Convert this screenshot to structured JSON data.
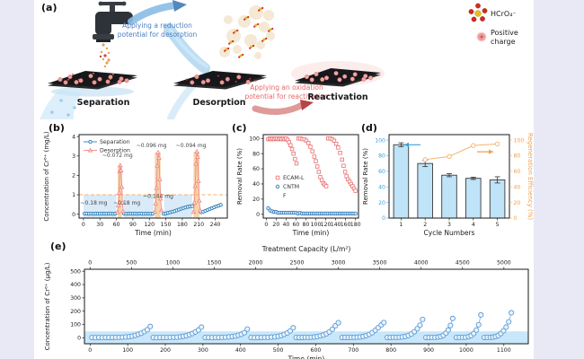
{
  "page": {
    "background": "#e8e9f4",
    "canvas_background": "#ffffff"
  },
  "panel_labels": {
    "a": "(a)",
    "b": "(b)",
    "c": "(c)",
    "d": "(d)",
    "e": "(e)"
  },
  "panel_a": {
    "stage_labels": [
      "Separation",
      "Desorption",
      "Reactivation"
    ],
    "blue_arrow_text_line1": "Applying a reduction",
    "blue_arrow_text_line2": "potential for desorption",
    "red_arrow_text_line1": "Applying an oxidation",
    "red_arrow_text_line2": "potential for reactivation",
    "legend": {
      "molecule_label": "HCrO₄⁻",
      "charge_label_line1": "Positive",
      "charge_label_line2": "charge"
    },
    "colors": {
      "blue_text": "#4a7fc1",
      "red_text": "#e96868",
      "blue_arrow": "#8abde5",
      "red_arrow": "#dc8f8f"
    }
  },
  "chart_data": [
    {
      "id": "b",
      "type": "line",
      "xlabel": "Time (min)",
      "ylabel": "Concentration of Cr⁶⁺ (mg/L)",
      "xlim": [
        -8,
        262
      ],
      "ylim": [
        -0.2,
        4.1
      ],
      "xticks": [
        0,
        30,
        60,
        90,
        120,
        150,
        180,
        210,
        240
      ],
      "yticks": [
        0,
        1,
        2,
        3,
        4
      ],
      "threshold": {
        "y": 1,
        "color": "#f5b26b"
      },
      "shade_color": "#d9eaf8",
      "shaded_regions": [
        {
          "x0": 0,
          "x1": 60
        },
        {
          "x0": 73,
          "x1": 128
        },
        {
          "x0": 147,
          "x1": 198
        }
      ],
      "band_color": "#f6d3a9",
      "peak_bands": [
        {
          "x0": 62.5,
          "x1": 70,
          "top": 2.52
        },
        {
          "x0": 130,
          "x1": 140.5,
          "top": 3.18
        },
        {
          "x0": 200.5,
          "x1": 211,
          "top": 3.22
        }
      ],
      "series": [
        {
          "name": "Separation",
          "color": "#2e7fb8",
          "marker": "circle",
          "marker_fill": "#eaf4fb",
          "segments": [
            {
              "x": [
                2,
                6,
                10,
                14,
                18,
                22,
                26,
                30,
                34,
                38,
                42,
                46,
                50,
                54,
                58
              ],
              "y": [
                0.03,
                0.03,
                0.02,
                0.03,
                0.02,
                0.03,
                0.03,
                0.02,
                0.03,
                0.03,
                0.02,
                0.03,
                0.03,
                0.02,
                0.03
              ]
            },
            {
              "x": [
                74,
                78,
                82,
                86,
                90,
                94,
                98,
                102,
                106,
                110,
                114,
                118,
                122,
                126
              ],
              "y": [
                0.03,
                0.02,
                0.03,
                0.03,
                0.02,
                0.03,
                0.02,
                0.03,
                0.03,
                0.02,
                0.03,
                0.03,
                0.02,
                0.03
              ]
            },
            {
              "x": [
                146,
                150,
                154,
                158,
                162,
                166,
                170,
                174,
                178,
                182,
                186,
                190,
                194,
                198
              ],
              "y": [
                0.02,
                0.04,
                0.07,
                0.1,
                0.13,
                0.16,
                0.2,
                0.24,
                0.28,
                0.32,
                0.35,
                0.38,
                0.4,
                0.42
              ]
            },
            {
              "x": [
                214,
                218,
                222,
                226,
                230,
                234,
                238,
                242,
                246,
                250
              ],
              "y": [
                0.1,
                0.13,
                0.17,
                0.22,
                0.27,
                0.31,
                0.36,
                0.4,
                0.44,
                0.48
              ]
            }
          ]
        },
        {
          "name": "Desorption",
          "color": "#ef8a88",
          "marker": "triangle",
          "marker_fill": "#fdecec",
          "segments": [
            {
              "x": [
                62,
                63.5,
                65,
                66,
                67,
                68.5,
                70,
                71,
                72
              ],
              "y": [
                0.1,
                0.45,
                1.1,
                2.2,
                2.52,
                2.25,
                1.4,
                0.6,
                0.15
              ]
            },
            {
              "x": [
                130,
                131.5,
                133,
                134.5,
                136,
                137.5,
                139,
                140.5,
                142
              ],
              "y": [
                0.12,
                0.55,
                1.35,
                2.5,
                3.18,
                2.9,
                1.8,
                0.8,
                0.2
              ]
            },
            {
              "x": [
                200.5,
                202,
                203.5,
                205,
                206.5,
                208,
                209.5,
                211,
                212.5
              ],
              "y": [
                0.12,
                0.6,
                1.45,
                2.6,
                3.22,
                2.95,
                1.7,
                0.7,
                0.2
              ]
            }
          ]
        }
      ],
      "annotations": [
        {
          "text": "~0.072 mg",
          "x": 62,
          "y": 2.95
        },
        {
          "text": "~0.096 mg",
          "x": 124,
          "y": 3.45
        },
        {
          "text": "~0.094 mg",
          "x": 196,
          "y": 3.45
        },
        {
          "text": "~0.18 mg",
          "x": 19,
          "y": 0.5
        },
        {
          "text": "~0.18 mg",
          "x": 79,
          "y": 0.5
        },
        {
          "text": "~0.144 mg",
          "x": 136,
          "y": 0.85
        }
      ]
    },
    {
      "id": "c",
      "type": "scatter",
      "xlabel": "Time (min)",
      "ylabel": "Removal Rate (%)",
      "xlim": [
        -6,
        186
      ],
      "ylim": [
        -5,
        105
      ],
      "xticks": [
        0,
        20,
        40,
        60,
        80,
        100,
        120,
        140,
        160,
        180
      ],
      "yticks": [
        0,
        20,
        40,
        60,
        80,
        100
      ],
      "series": [
        {
          "name": "ECAM-L",
          "color": "#e8716f",
          "marker": "square",
          "marker_fill": "#ffffff",
          "error": 2,
          "x": [
            4,
            7,
            10,
            13,
            16,
            19,
            22,
            25,
            28,
            31,
            34,
            37,
            40,
            43,
            46,
            49,
            52,
            55,
            58,
            61,
            65,
            69,
            73,
            77,
            81,
            85,
            89,
            93,
            97,
            100,
            103,
            106,
            109,
            112,
            115,
            118,
            121,
            125,
            129,
            133,
            137,
            141,
            145,
            149,
            153,
            156,
            159,
            162,
            165,
            168,
            171,
            174,
            177,
            180
          ],
          "y": [
            99,
            100,
            99,
            100,
            99,
            100,
            100,
            99,
            100,
            99,
            100,
            99,
            100,
            98,
            95,
            91,
            86,
            80,
            73,
            67,
            100,
            100,
            99,
            99,
            97,
            94,
            89,
            83,
            76,
            70,
            63,
            56,
            49,
            45,
            41,
            39,
            37,
            100,
            100,
            99,
            97,
            93,
            88,
            81,
            72,
            64,
            56,
            50,
            46,
            43,
            40,
            37,
            34,
            31
          ]
        },
        {
          "name": "CNTM",
          "color": "#2e78b8",
          "marker": "circle",
          "marker_fill": "#d6e9f8",
          "x": [
            4,
            8,
            12,
            16,
            20,
            24,
            28,
            32,
            36,
            40,
            44,
            48,
            52,
            56,
            60,
            64,
            68,
            72,
            76,
            80,
            84,
            88,
            92,
            96,
            100,
            104,
            108,
            112,
            116,
            120,
            124,
            128,
            132,
            136,
            140,
            144,
            148,
            152,
            156,
            160,
            164,
            168,
            172,
            176,
            180
          ],
          "y": [
            8,
            5,
            4,
            3,
            3,
            2,
            2,
            2,
            2,
            2,
            2,
            2,
            2,
            2,
            2,
            1,
            2,
            1,
            1,
            1,
            1,
            1,
            1,
            1,
            1,
            1,
            1,
            1,
            1,
            1,
            1,
            1,
            1,
            1,
            1,
            1,
            1,
            1,
            1,
            1,
            1,
            1,
            1,
            1,
            1
          ]
        },
        {
          "name": "F",
          "color": "#2e78b8",
          "marker": "none",
          "x": [],
          "y": []
        }
      ]
    },
    {
      "id": "d",
      "type": "bar-line",
      "xlabel": "Cycle Numbers",
      "ylabel_left": "Removal Rate (%)",
      "ylabel_right": "Regeneration Efficiency (%)",
      "categories": [
        "1",
        "2",
        "3",
        "4",
        "5"
      ],
      "yticks": [
        0,
        20,
        40,
        60,
        80,
        100
      ],
      "bars": {
        "name": "Removal Rate",
        "values": [
          94,
          70,
          55,
          51,
          49
        ],
        "errors": [
          2.5,
          4,
          2,
          1.5,
          4
        ],
        "fill": "#bfe3f7",
        "edge": "#3a3a3a"
      },
      "line": {
        "name": "Regeneration Efficiency",
        "x": [
          2,
          3,
          4,
          5
        ],
        "values": [
          75,
          79,
          93,
          95
        ],
        "color": "#f2b272"
      },
      "left_color": "#3da0e0",
      "right_color": "#f0a050"
    },
    {
      "id": "e",
      "type": "scatter-cycles",
      "xlabel": "Time (min)",
      "top_xlabel": "Treatment Capacity (L/m²)",
      "ylabel": "Concentration of Cr⁶⁺ (μg/L)",
      "xlim": [
        -15,
        1165
      ],
      "ylim": [
        -45,
        515
      ],
      "xticks": [
        0,
        100,
        200,
        300,
        400,
        500,
        600,
        700,
        800,
        900,
        1000,
        1100
      ],
      "top_xticks": [
        0,
        500,
        1000,
        1500,
        2000,
        2500,
        3000,
        3500,
        4000,
        4500,
        5000
      ],
      "capacity_per_min": 4.545,
      "yticks": [
        0,
        100,
        200,
        300,
        400,
        500
      ],
      "band": {
        "y1": 48,
        "fill": "#c9e7fa"
      },
      "series_color": "#5b9bd5",
      "line_color": "#7fb0dc",
      "marker_fill": "#eaf4fc",
      "cycles": [
        {
          "x": [
            5,
            14,
            23,
            32,
            41,
            50,
            59,
            68,
            77,
            86,
            95,
            104,
            112,
            120,
            128,
            136,
            144,
            152,
            160
          ],
          "y": [
            2,
            1,
            2,
            1,
            2,
            2,
            2,
            3,
            3,
            4,
            6,
            8,
            12,
            18,
            26,
            34,
            46,
            60,
            85
          ]
        },
        {
          "x": [
            168,
            177,
            186,
            195,
            204,
            213,
            222,
            231,
            240,
            248,
            256,
            264,
            272,
            280,
            288,
            296
          ],
          "y": [
            2,
            1,
            2,
            2,
            2,
            3,
            3,
            4,
            7,
            11,
            16,
            23,
            32,
            44,
            58,
            80
          ]
        },
        {
          "x": [
            306,
            315,
            324,
            333,
            342,
            351,
            360,
            369,
            378,
            386,
            394,
            402,
            410,
            418
          ],
          "y": [
            2,
            2,
            1,
            2,
            2,
            3,
            4,
            6,
            9,
            13,
            19,
            26,
            38,
            65
          ]
        },
        {
          "x": [
            428,
            437,
            446,
            455,
            464,
            473,
            482,
            491,
            500,
            508,
            516,
            524,
            532,
            540
          ],
          "y": [
            2,
            1,
            2,
            2,
            3,
            3,
            5,
            7,
            11,
            17,
            25,
            36,
            52,
            75
          ]
        },
        {
          "x": [
            548,
            556,
            564,
            572,
            580,
            588,
            596,
            604,
            612,
            620,
            628,
            636,
            644,
            652,
            660
          ],
          "y": [
            2,
            2,
            2,
            3,
            3,
            4,
            6,
            9,
            14,
            21,
            30,
            44,
            64,
            90,
            113
          ]
        },
        {
          "x": [
            670,
            678,
            686,
            694,
            702,
            710,
            718,
            726,
            734,
            742,
            750,
            758,
            766,
            774,
            781
          ],
          "y": [
            2,
            2,
            2,
            3,
            3,
            4,
            6,
            10,
            16,
            25,
            38,
            56,
            76,
            96,
            114
          ]
        },
        {
          "x": [
            790,
            798,
            806,
            814,
            822,
            830,
            838,
            846,
            854,
            862,
            870,
            877,
            884
          ],
          "y": [
            2,
            2,
            3,
            3,
            4,
            6,
            10,
            17,
            28,
            45,
            68,
            95,
            138
          ]
        },
        {
          "x": [
            893,
            901,
            909,
            917,
            925,
            932,
            939,
            946,
            952,
            958,
            964
          ],
          "y": [
            2,
            2,
            3,
            3,
            5,
            9,
            18,
            35,
            58,
            92,
            145
          ]
        },
        {
          "x": [
            974,
            982,
            990,
            998,
            1006,
            1013,
            1020,
            1027,
            1033,
            1039
          ],
          "y": [
            2,
            3,
            3,
            4,
            8,
            16,
            32,
            58,
            98,
            172
          ]
        },
        {
          "x": [
            1048,
            1056,
            1064,
            1071,
            1078,
            1085,
            1092,
            1099,
            1106,
            1113,
            1120
          ],
          "y": [
            2,
            3,
            3,
            5,
            9,
            17,
            32,
            52,
            80,
            120,
            188
          ]
        }
      ]
    }
  ]
}
